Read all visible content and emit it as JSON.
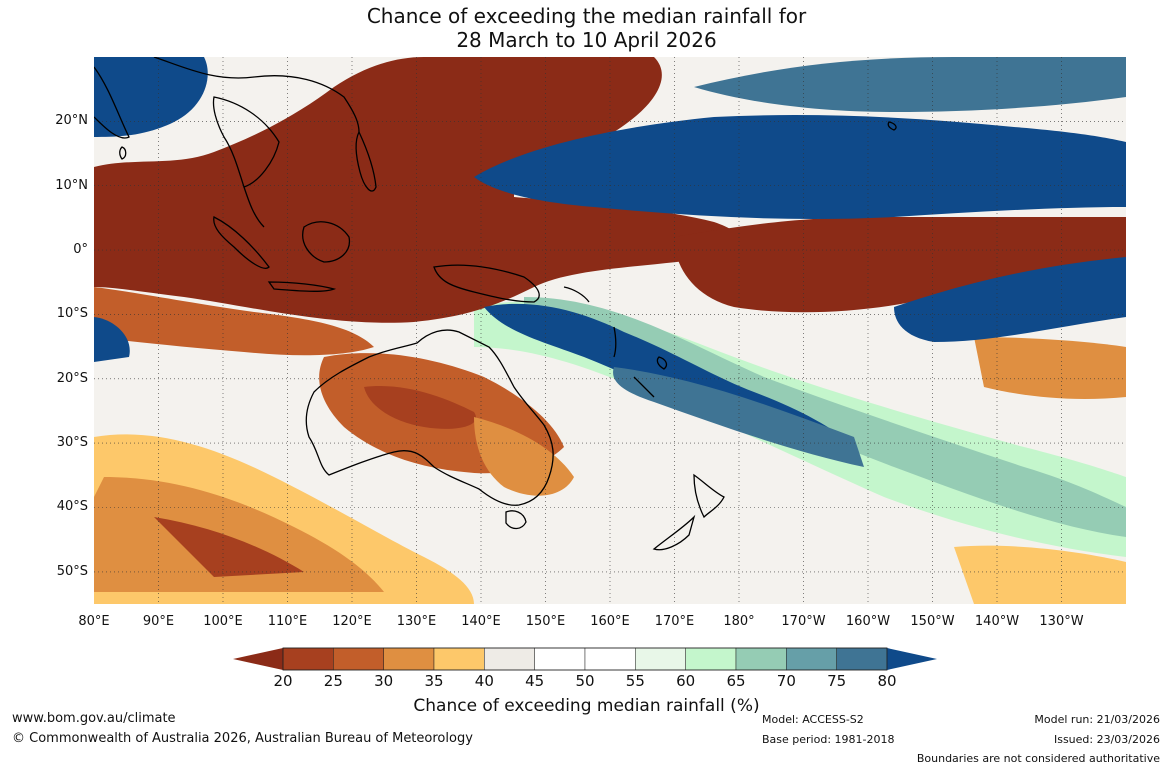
{
  "title": {
    "line1": "Chance of exceeding the median rainfall for",
    "line2": "28 March to 10 April 2026"
  },
  "map": {
    "lat_labels": [
      {
        "label": "20°N",
        "lat": 20
      },
      {
        "label": "10°N",
        "lat": 10
      },
      {
        "label": "0°",
        "lat": 0
      },
      {
        "label": "10°S",
        "lat": -10
      },
      {
        "label": "20°S",
        "lat": -20
      },
      {
        "label": "30°S",
        "lat": -30
      },
      {
        "label": "40°S",
        "lat": -40
      },
      {
        "label": "50°S",
        "lat": -50
      }
    ],
    "lon_labels": [
      {
        "label": "80°E",
        "lon": 80
      },
      {
        "label": "90°E",
        "lon": 90
      },
      {
        "label": "100°E",
        "lon": 100
      },
      {
        "label": "110°E",
        "lon": 110
      },
      {
        "label": "120°E",
        "lon": 120
      },
      {
        "label": "130°E",
        "lon": 130
      },
      {
        "label": "140°E",
        "lon": 140
      },
      {
        "label": "150°E",
        "lon": 150
      },
      {
        "label": "160°E",
        "lon": 160
      },
      {
        "label": "170°E",
        "lon": 170
      },
      {
        "label": "180°",
        "lon": 180
      },
      {
        "label": "170°W",
        "lon": 190
      },
      {
        "label": "160°W",
        "lon": 200
      },
      {
        "label": "150°W",
        "lon": 210
      },
      {
        "label": "140°W",
        "lon": 220
      },
      {
        "label": "130°W",
        "lon": 230
      }
    ],
    "extent": {
      "lon_min": 80,
      "lon_max": 240,
      "lat_min": -55,
      "lat_max": 30
    }
  },
  "colorbar": {
    "ticks": [
      "20",
      "25",
      "30",
      "35",
      "40",
      "45",
      "50",
      "55",
      "60",
      "65",
      "70",
      "75",
      "80"
    ],
    "below_color": "#8b2b17",
    "above_color": "#0f4a8a",
    "colors": [
      "#a7401f",
      "#c25e2a",
      "#df8f41",
      "#fdc86a",
      "#eeebe6",
      "#ffffff",
      "#ffffff",
      "#e8f7e8",
      "#c4f6cc",
      "#95ccb4",
      "#669fa8",
      "#3f7494"
    ],
    "title": "Chance of exceeding median rainfall (%)"
  },
  "footer": {
    "url": "www.bom.gov.au/climate",
    "copyright": "© Commonwealth of Australia 2026, Australian Bureau of Meteorology",
    "model": "Model: ACCESS-S2",
    "base_period": "Base period: 1981-2018",
    "model_run": "Model run: 21/03/2026",
    "issued": "Issued: 23/03/2026",
    "disclaimer": "Boundaries are not considered authoritative"
  }
}
